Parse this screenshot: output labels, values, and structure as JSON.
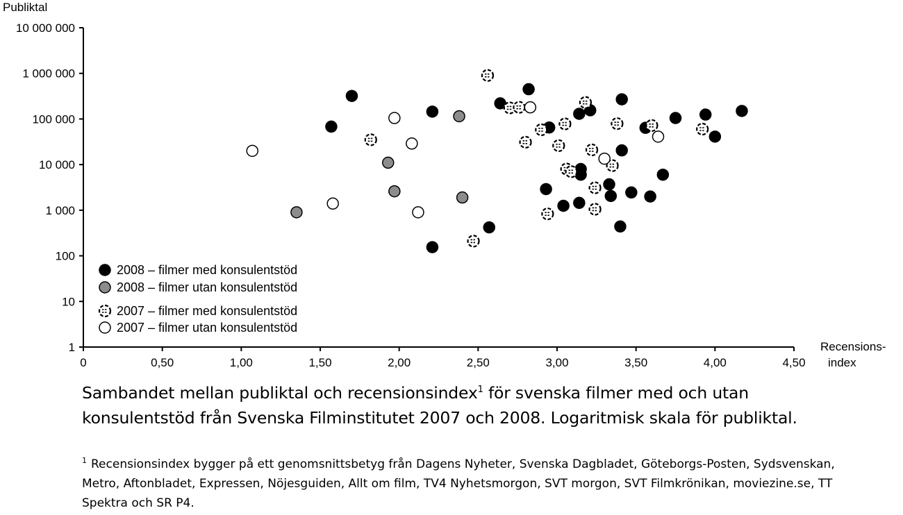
{
  "chart_data": {
    "type": "scatter",
    "title": "",
    "ylabel": "Publiktal",
    "xlabel": "Recensions-index",
    "xlabel_lines": [
      "Recensions-",
      "index"
    ],
    "xlim": [
      0,
      4.5
    ],
    "ylim": [
      1,
      10000000
    ],
    "y_scale": "log",
    "grid": false,
    "legend_position": "bottom-left",
    "x_ticks": [
      {
        "value": 0,
        "label": "0"
      },
      {
        "value": 0.5,
        "label": "0,50"
      },
      {
        "value": 1.0,
        "label": "1,00"
      },
      {
        "value": 1.5,
        "label": "1,50"
      },
      {
        "value": 2.0,
        "label": "2,00"
      },
      {
        "value": 2.5,
        "label": "2,50"
      },
      {
        "value": 3.0,
        "label": "3,00"
      },
      {
        "value": 3.5,
        "label": "3,50"
      },
      {
        "value": 4.0,
        "label": "4,00"
      },
      {
        "value": 4.5,
        "label": "4,50"
      }
    ],
    "y_ticks": [
      {
        "value": 1,
        "label": "1"
      },
      {
        "value": 10,
        "label": "10"
      },
      {
        "value": 100,
        "label": "100"
      },
      {
        "value": 1000,
        "label": "1 000"
      },
      {
        "value": 10000,
        "label": "10 000"
      },
      {
        "value": 100000,
        "label": "100 000"
      },
      {
        "value": 1000000,
        "label": "1 000 000"
      },
      {
        "value": 10000000,
        "label": "10 000 000"
      }
    ],
    "series": [
      {
        "name": "2008 – filmer med konsulentstöd",
        "marker": "filled-black",
        "points": [
          {
            "x": 1.57,
            "y": 68000
          },
          {
            "x": 1.7,
            "y": 320000
          },
          {
            "x": 2.21,
            "y": 145000
          },
          {
            "x": 2.21,
            "y": 155
          },
          {
            "x": 2.57,
            "y": 420
          },
          {
            "x": 2.64,
            "y": 220000
          },
          {
            "x": 2.82,
            "y": 450000
          },
          {
            "x": 2.93,
            "y": 2900
          },
          {
            "x": 2.95,
            "y": 65000
          },
          {
            "x": 3.04,
            "y": 1250
          },
          {
            "x": 3.14,
            "y": 1450
          },
          {
            "x": 3.14,
            "y": 130000
          },
          {
            "x": 3.15,
            "y": 6000
          },
          {
            "x": 3.15,
            "y": 8000
          },
          {
            "x": 3.21,
            "y": 155000
          },
          {
            "x": 3.33,
            "y": 3700
          },
          {
            "x": 3.34,
            "y": 2050
          },
          {
            "x": 3.4,
            "y": 440
          },
          {
            "x": 3.41,
            "y": 270000
          },
          {
            "x": 3.41,
            "y": 20500
          },
          {
            "x": 3.47,
            "y": 2450
          },
          {
            "x": 3.56,
            "y": 64000
          },
          {
            "x": 3.59,
            "y": 2000
          },
          {
            "x": 3.67,
            "y": 6000
          },
          {
            "x": 3.75,
            "y": 105000
          },
          {
            "x": 3.94,
            "y": 125000
          },
          {
            "x": 4.0,
            "y": 41000
          },
          {
            "x": 4.17,
            "y": 150000
          }
        ]
      },
      {
        "name": "2008 – filmer utan konsulentstöd",
        "marker": "filled-gray",
        "points": [
          {
            "x": 1.35,
            "y": 900
          },
          {
            "x": 1.93,
            "y": 11000
          },
          {
            "x": 1.97,
            "y": 2600
          },
          {
            "x": 2.38,
            "y": 115000
          },
          {
            "x": 2.4,
            "y": 1900
          }
        ]
      },
      {
        "name": "2007 – filmer med konsulentstöd",
        "marker": "dashed",
        "points": [
          {
            "x": 1.82,
            "y": 35000
          },
          {
            "x": 2.47,
            "y": 210
          },
          {
            "x": 2.56,
            "y": 900000
          },
          {
            "x": 2.7,
            "y": 175000
          },
          {
            "x": 2.76,
            "y": 180000
          },
          {
            "x": 2.8,
            "y": 31000
          },
          {
            "x": 2.9,
            "y": 58000
          },
          {
            "x": 2.94,
            "y": 830
          },
          {
            "x": 3.01,
            "y": 26000
          },
          {
            "x": 3.05,
            "y": 78000
          },
          {
            "x": 3.06,
            "y": 8000
          },
          {
            "x": 3.09,
            "y": 7000
          },
          {
            "x": 3.18,
            "y": 230000
          },
          {
            "x": 3.22,
            "y": 21000
          },
          {
            "x": 3.24,
            "y": 1050
          },
          {
            "x": 3.24,
            "y": 3100
          },
          {
            "x": 3.35,
            "y": 9500
          },
          {
            "x": 3.38,
            "y": 79000
          },
          {
            "x": 3.6,
            "y": 72000
          },
          {
            "x": 3.92,
            "y": 60000
          }
        ]
      },
      {
        "name": "2007 – filmer utan konsulentstöd",
        "marker": "open",
        "points": [
          {
            "x": 1.07,
            "y": 20000
          },
          {
            "x": 1.58,
            "y": 1400
          },
          {
            "x": 1.97,
            "y": 105000
          },
          {
            "x": 2.08,
            "y": 29000
          },
          {
            "x": 2.12,
            "y": 900
          },
          {
            "x": 2.83,
            "y": 180000
          },
          {
            "x": 3.3,
            "y": 13500
          },
          {
            "x": 3.64,
            "y": 41000
          }
        ]
      }
    ]
  },
  "caption": {
    "before_sup": "Sambandet mellan publiktal och recensionsindex",
    "sup": "1",
    "after_sup": " för svenska filmer med och utan konsulentstöd från Svenska Filminstitutet 2007 och 2008. Logaritmisk skala för publiktal."
  },
  "footnote": {
    "mark": "1",
    "text": "Recensionsindex bygger på ett genomsnittsbetyg från Dagens Nyheter, Svenska Dagbladet, Göteborgs-Posten, Sydsvenskan, Metro, Aftonbladet, Expressen, Nöjesguiden, Allt om film, TV4 Nyhetsmorgon, SVT morgon, SVT Filmkrönikan, moviezine.se, TT Spektra och SR P4."
  },
  "colors": {
    "black_marker": "#000000",
    "gray_marker": "#8c8c8c",
    "open_marker_fill": "#ffffff"
  }
}
